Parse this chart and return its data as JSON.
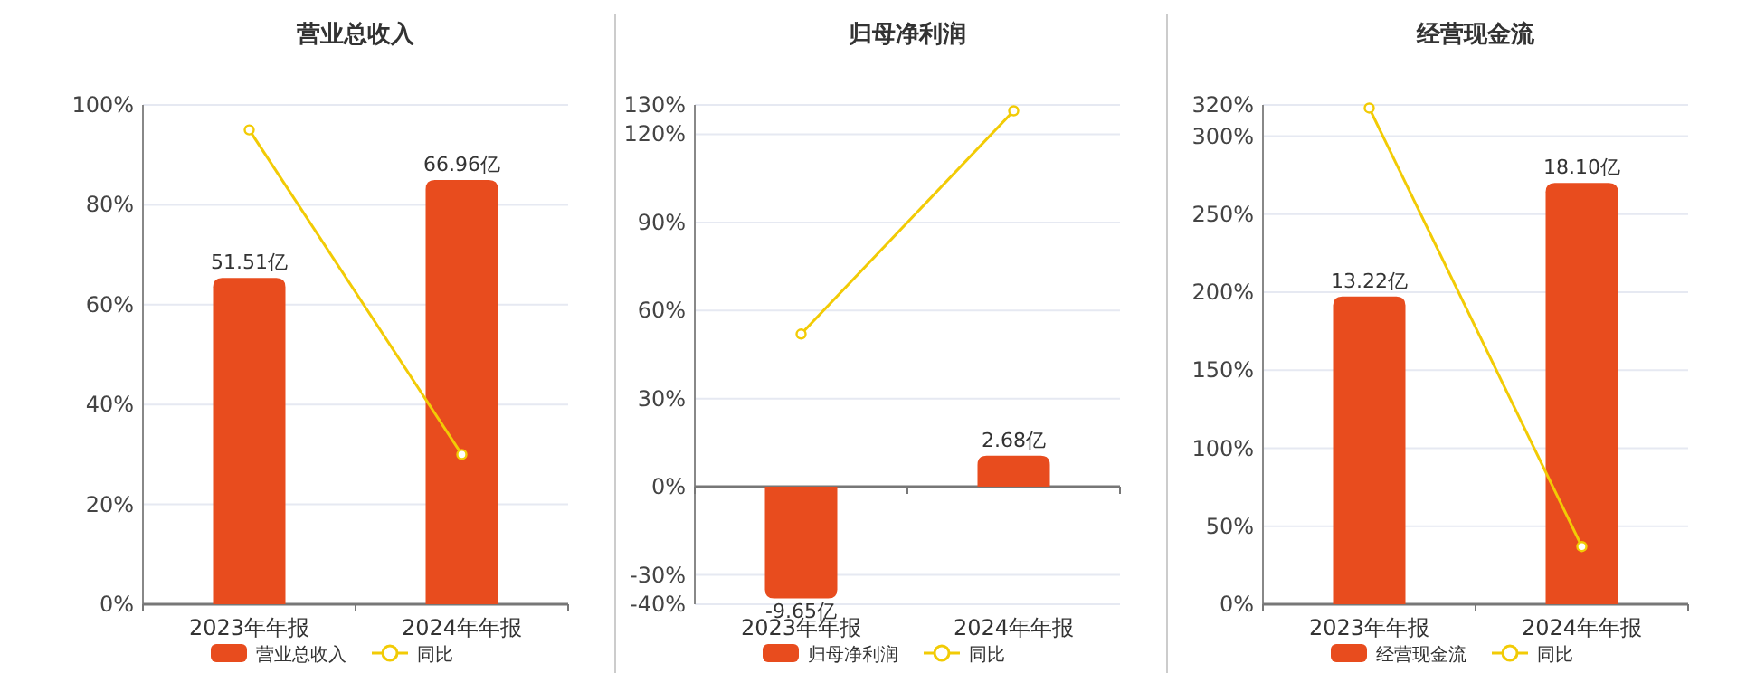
{
  "chart_data": [
    {
      "type": "bar",
      "title": "营业总收入",
      "categories": [
        "2023年年报",
        "2024年年报"
      ],
      "series": [
        {
          "name": "营业总收入",
          "axis": "y2",
          "color": "#e84c1e",
          "values": [
            51.51,
            66.96
          ],
          "value_labels": [
            "51.51亿",
            "66.96亿"
          ]
        },
        {
          "name": "同比",
          "type": "line",
          "color": "#f2cb05",
          "marker": "circle",
          "values": [
            95,
            30
          ]
        }
      ],
      "ylim": [
        0,
        100
      ],
      "yticks": [
        {
          "value": 0,
          "label": "0%"
        },
        {
          "value": 20,
          "label": "20%"
        },
        {
          "value": 40,
          "label": "40%"
        },
        {
          "value": 60,
          "label": "60%"
        },
        {
          "value": 80,
          "label": "80%"
        },
        {
          "value": 100,
          "label": "100%"
        }
      ],
      "y2lim": [
        0,
        78.8
      ],
      "tick_labels": "x",
      "grid": "y",
      "legend": "bottom"
    },
    {
      "type": "bar",
      "title": "归母净利润",
      "categories": [
        "2023年年报",
        "2024年年报"
      ],
      "series": [
        {
          "name": "归母净利润",
          "axis": "y2",
          "color": "#e84c1e",
          "values": [
            -9.65,
            2.68
          ],
          "value_labels": [
            "-9.65亿",
            "2.68亿"
          ]
        },
        {
          "name": "同比",
          "type": "line",
          "color": "#f2cb05",
          "marker": "circle",
          "values": [
            52,
            128
          ]
        }
      ],
      "ylim": [
        -40,
        130
      ],
      "yticks": [
        {
          "value": -40,
          "label": "-40%"
        },
        {
          "value": -30,
          "label": "-30%"
        },
        {
          "value": 0,
          "label": "0%"
        },
        {
          "value": 30,
          "label": "30%"
        },
        {
          "value": 60,
          "label": "60%"
        },
        {
          "value": 90,
          "label": "90%"
        },
        {
          "value": 120,
          "label": "120%"
        },
        {
          "value": 130,
          "label": "130%"
        }
      ],
      "y2lim": [
        -10.16,
        33.0
      ],
      "tick_labels": "x",
      "grid": "y",
      "legend": "bottom"
    },
    {
      "type": "bar",
      "title": "经营现金流",
      "categories": [
        "2023年年报",
        "2024年年报"
      ],
      "series": [
        {
          "name": "经营现金流",
          "axis": "y2",
          "color": "#e84c1e",
          "values": [
            13.22,
            18.1
          ],
          "value_labels": [
            "13.22亿",
            "18.10亿"
          ]
        },
        {
          "name": "同比",
          "type": "line",
          "color": "#f2cb05",
          "marker": "circle",
          "values": [
            318,
            37
          ]
        }
      ],
      "ylim": [
        0,
        320
      ],
      "yticks": [
        {
          "value": 0,
          "label": "0%"
        },
        {
          "value": 50,
          "label": "50%"
        },
        {
          "value": 100,
          "label": "100%"
        },
        {
          "value": 150,
          "label": "150%"
        },
        {
          "value": 200,
          "label": "200%"
        },
        {
          "value": 250,
          "label": "250%"
        },
        {
          "value": 300,
          "label": "300%"
        },
        {
          "value": 320,
          "label": "320%"
        }
      ],
      "y2lim": [
        0,
        21.45
      ],
      "tick_labels": "x",
      "grid": "y",
      "legend": "bottom"
    }
  ]
}
